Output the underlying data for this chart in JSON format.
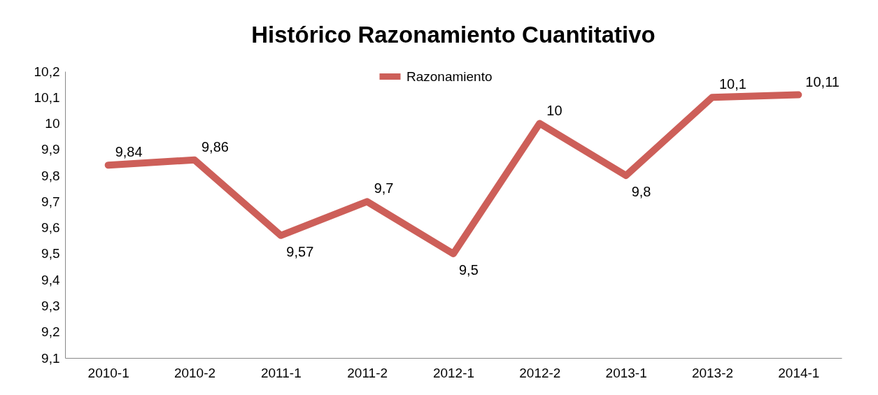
{
  "chart_data": {
    "type": "line",
    "title": "Histórico Razonamiento Cuantitativo",
    "categories": [
      "2010-1",
      "2010-2",
      "2011-1",
      "2011-2",
      "2012-1",
      "2012-2",
      "2013-1",
      "2013-2",
      "2014-1"
    ],
    "series": [
      {
        "name": "Razonamiento",
        "color": "#cd5f59",
        "values": [
          9.84,
          9.86,
          9.57,
          9.7,
          9.5,
          10,
          9.8,
          10.1,
          10.11
        ],
        "value_labels": [
          "9,84",
          "9,86",
          "9,57",
          "9,7",
          "9,5",
          "10",
          "9,8",
          "10,1",
          "10,11"
        ]
      }
    ],
    "ylim": [
      9.1,
      10.2
    ],
    "yticks": [
      {
        "value": 9.1,
        "label": "9,1"
      },
      {
        "value": 9.2,
        "label": "9,2"
      },
      {
        "value": 9.3,
        "label": "9,3"
      },
      {
        "value": 9.4,
        "label": "9,4"
      },
      {
        "value": 9.5,
        "label": "9,5"
      },
      {
        "value": 9.6,
        "label": "9,6"
      },
      {
        "value": 9.7,
        "label": "9,7"
      },
      {
        "value": 9.8,
        "label": "9,8"
      },
      {
        "value": 9.9,
        "label": "9,9"
      },
      {
        "value": 10,
        "label": "10"
      },
      {
        "value": 10.1,
        "label": "10,1"
      },
      {
        "value": 10.2,
        "label": "10,2"
      }
    ],
    "grid": false,
    "legend": "top",
    "marker": "none",
    "line_style": "solid"
  }
}
